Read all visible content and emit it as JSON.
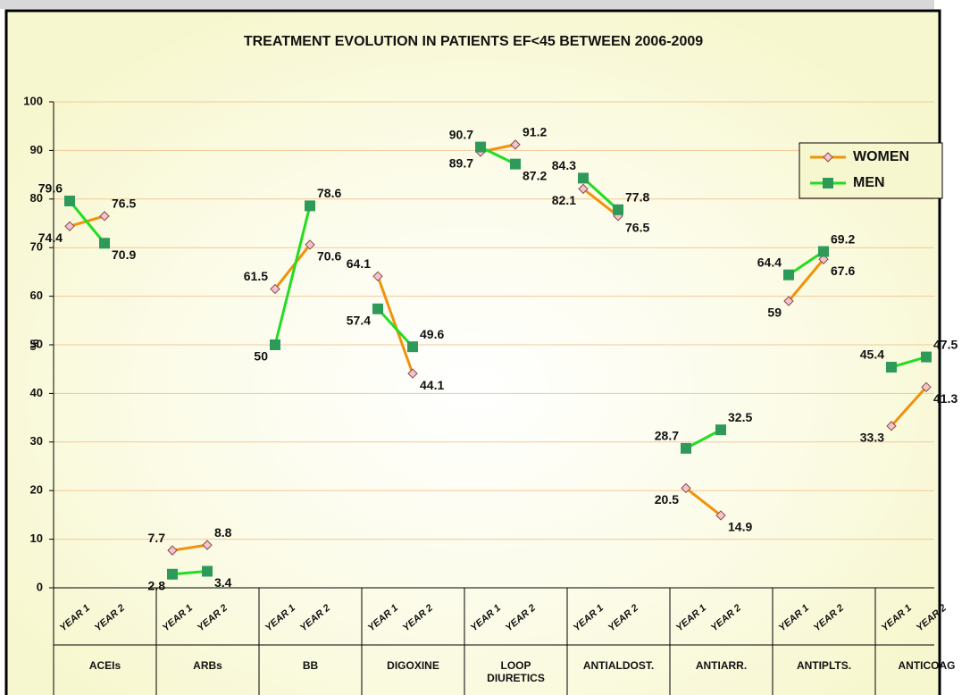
{
  "chart_data": {
    "type": "line",
    "title": "TREATMENT EVOLUTION IN PATIENTS EF<45 BETWEEN 2006-2009",
    "y_label": "%",
    "groups": [
      "ACEIs",
      "ARBs",
      "BB",
      "DIGOXINE",
      "LOOP DIURETICS",
      "ANTIALDOST.",
      "ANTIARR.",
      "ANTIPLTS.",
      "ANTICOAG"
    ],
    "categories": [
      "YEAR 1",
      "YEAR 2",
      "YEAR 1",
      "YEAR 2",
      "YEAR 1",
      "YEAR 2",
      "YEAR 1",
      "YEAR 2",
      "YEAR 1",
      "YEAR 2",
      "YEAR 1",
      "YEAR 2",
      "YEAR 1",
      "YEAR 2",
      "YEAR 1",
      "YEAR 2",
      "YEAR 1",
      "YEAR 2"
    ],
    "series": [
      {
        "name": "WOMEN",
        "color": "#f0920a",
        "marker_color": "#f2c4cc",
        "marker": "diamond",
        "values": [
          74.4,
          76.5,
          7.7,
          8.8,
          61.5,
          70.6,
          64.1,
          44.1,
          89.7,
          91.2,
          82.1,
          76.5,
          20.5,
          14.9,
          59,
          67.6,
          33.3,
          41.3
        ]
      },
      {
        "name": "MEN",
        "color": "#22dd22",
        "marker_color": "#2e9a5a",
        "marker": "square",
        "values": [
          79.6,
          70.9,
          2.8,
          3.4,
          50,
          78.6,
          57.4,
          49.6,
          90.7,
          87.2,
          84.3,
          77.8,
          28.7,
          32.5,
          64.4,
          69.2,
          45.4,
          47.5
        ]
      }
    ],
    "ylim": [
      0,
      100
    ],
    "yticks": [
      0,
      10,
      20,
      30,
      40,
      50,
      60,
      70,
      80,
      90,
      100
    ],
    "grid": true,
    "legend": "upper right"
  }
}
